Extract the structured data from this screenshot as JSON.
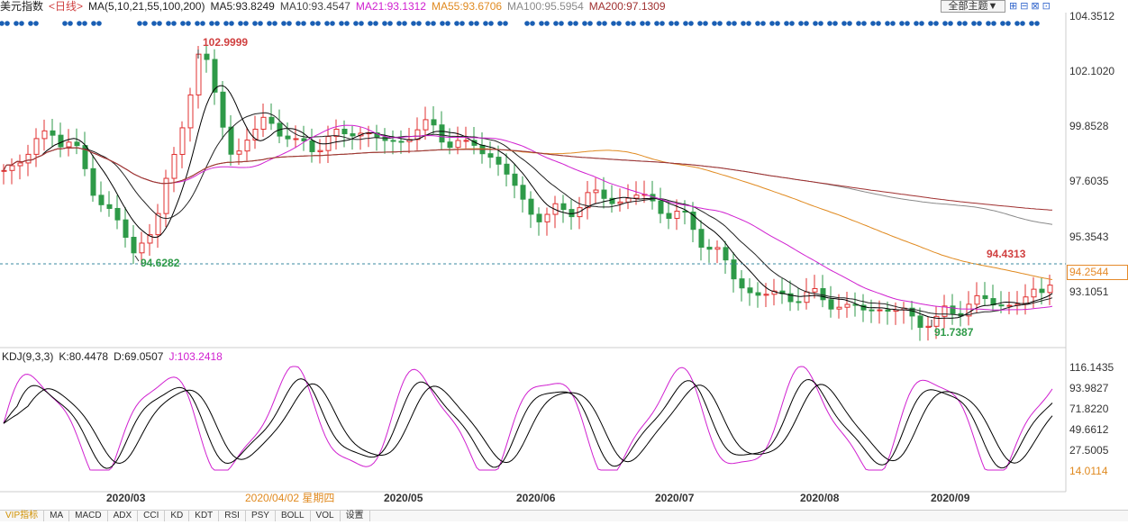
{
  "header": {
    "symbol": "美元指数",
    "period": "<日线>",
    "ma_params": "MA(5,10,21,55,100,200)",
    "ma5": "MA5:93.8249",
    "ma10": "MA10:93.4547",
    "ma21": "MA21:93.1312",
    "ma55": "MA55:93.6706",
    "ma100": "MA100:95.5954",
    "ma200": "MA200:97.1309",
    "theme_button": "全部主题▼",
    "tool_icons": "⊞⊟⊠⊡"
  },
  "colors": {
    "up": "#e03030",
    "down": "#2e9a48",
    "ma5": "#000000",
    "ma10": "#222222",
    "ma21": "#d020d0",
    "ma55": "#e08a20",
    "ma100": "#8a8a8a",
    "ma200": "#a03030",
    "k": "#000000",
    "d": "#000000",
    "j": "#d020d0",
    "event_dots": "#1a5fb4"
  },
  "kdj": {
    "params": "KDJ(9,3,3)",
    "k": "K:80.4478",
    "d": "D:69.0507",
    "j": "J:103.2418"
  },
  "price_axis": {
    "ticks": [
      "104.3512",
      "102.1020",
      "99.8528",
      "97.6035",
      "95.3543",
      "93.1051"
    ],
    "current": "94.2544"
  },
  "kdj_axis": {
    "ticks": [
      "116.1435",
      "93.9827",
      "71.8220",
      "49.6612",
      "27.5005",
      "14.0114"
    ]
  },
  "time_axis": {
    "labels": [
      "2020/03",
      "2020/04/02 星期四",
      "2020/05",
      "2020/06",
      "2020/07",
      "2020/08",
      "2020/09"
    ]
  },
  "annotations": {
    "high": "102.9999",
    "low1": "94.6282",
    "low2": "91.7387",
    "recent_high": "94.4313"
  },
  "bottom_tabs": [
    "VIP指标",
    "MA",
    "MACD",
    "ADX",
    "CCI",
    "KD",
    "KDT",
    "RSI",
    "PSY",
    "BOLL",
    "VOL",
    "设置"
  ],
  "chart_data": {
    "type": "candlestick",
    "ylim": [
      91.2,
      104.6
    ],
    "anchors": [
      [
        0,
        98.2
      ],
      [
        10,
        99.0
      ],
      [
        18,
        99.8
      ],
      [
        25,
        99.2
      ],
      [
        33,
        97.5
      ],
      [
        41,
        96.3
      ],
      [
        48,
        94.9
      ],
      [
        56,
        96.2
      ],
      [
        63,
        98.6
      ],
      [
        68,
        101.2
      ],
      [
        72,
        102.7
      ],
      [
        75,
        102.2
      ],
      [
        80,
        100.6
      ],
      [
        85,
        98.6
      ],
      [
        90,
        99.3
      ],
      [
        97,
        100.4
      ],
      [
        103,
        99.7
      ],
      [
        108,
        99.1
      ],
      [
        115,
        99.3
      ],
      [
        122,
        99.4
      ],
      [
        130,
        99.9
      ],
      [
        137,
        99.5
      ],
      [
        143,
        99.2
      ],
      [
        150,
        99.7
      ],
      [
        155,
        99.8
      ],
      [
        160,
        99.9
      ],
      [
        165,
        99.4
      ],
      [
        170,
        99.0
      ],
      [
        175,
        99.3
      ],
      [
        180,
        98.8
      ],
      [
        186,
        98.0
      ],
      [
        193,
        96.8
      ],
      [
        200,
        96.3
      ],
      [
        207,
        96.6
      ],
      [
        214,
        97.0
      ],
      [
        221,
        97.2
      ],
      [
        228,
        97.0
      ],
      [
        235,
        97.2
      ],
      [
        242,
        96.8
      ],
      [
        249,
        96.4
      ],
      [
        256,
        95.8
      ],
      [
        263,
        95.0
      ],
      [
        270,
        94.0
      ],
      [
        277,
        93.3
      ],
      [
        284,
        93.2
      ],
      [
        291,
        93.3
      ],
      [
        298,
        93.1
      ],
      [
        305,
        93.2
      ],
      [
        312,
        92.6
      ],
      [
        319,
        92.8
      ],
      [
        326,
        92.7
      ],
      [
        333,
        92.5
      ],
      [
        340,
        92.3
      ],
      [
        345,
        92.1
      ],
      [
        349,
        92.6
      ],
      [
        356,
        92.9
      ],
      [
        363,
        93.0
      ],
      [
        370,
        92.9
      ],
      [
        377,
        93.0
      ],
      [
        384,
        93.4
      ],
      [
        388,
        94.25
      ]
    ],
    "n_candles": 389,
    "step": 3
  }
}
